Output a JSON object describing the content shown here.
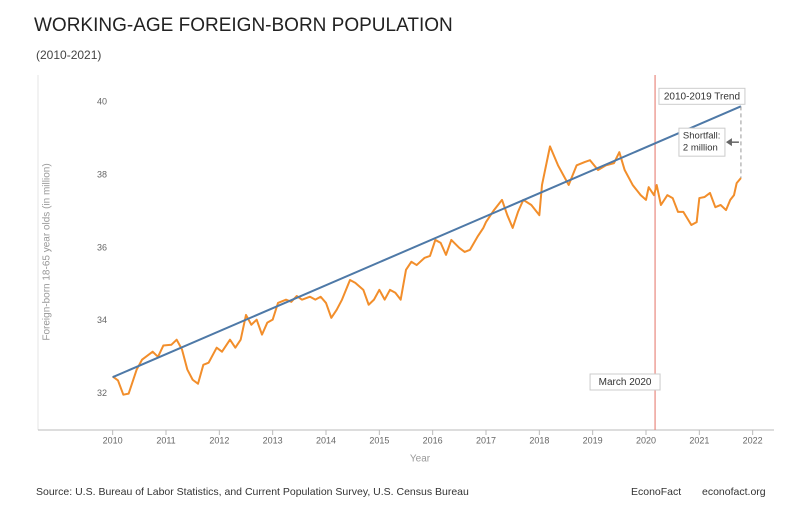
{
  "chart_data": {
    "type": "line",
    "title": "WORKING-AGE FOREIGN-BORN POPULATION",
    "subtitle": "(2010-2021)",
    "x_label": "Year",
    "y_label": "Foreign-born 18-65 year olds (in million)",
    "xlim": [
      2008.6,
      2022.4
    ],
    "ylim": [
      31,
      40.75
    ],
    "xticks": [
      2010,
      2011,
      2012,
      2013,
      2014,
      2015,
      2016,
      2017,
      2018,
      2019,
      2020,
      2021,
      2022
    ],
    "yticks": [
      32,
      34,
      36,
      38,
      40
    ],
    "grid": false,
    "series": [
      {
        "color": "#f28e2b",
        "x": [
          2010.0,
          2010.1,
          2010.2,
          2010.3,
          2010.45,
          2010.55,
          2010.75,
          2010.85,
          2010.95,
          2011.1,
          2011.2,
          2011.3,
          2011.4,
          2011.5,
          2011.6,
          2011.7,
          2011.8,
          2011.95,
          2012.05,
          2012.2,
          2012.3,
          2012.4,
          2012.5,
          2012.6,
          2012.7,
          2012.8,
          2012.9,
          2013.0,
          2013.1,
          2013.25,
          2013.35,
          2013.45,
          2013.55,
          2013.7,
          2013.8,
          2013.9,
          2014.0,
          2014.1,
          2014.2,
          2014.3,
          2014.45,
          2014.55,
          2014.7,
          2014.8,
          2014.9,
          2015.0,
          2015.1,
          2015.2,
          2015.3,
          2015.4,
          2015.5,
          2015.6,
          2015.7,
          2015.85,
          2015.95,
          2016.05,
          2016.15,
          2016.25,
          2016.35,
          2016.5,
          2016.6,
          2016.7,
          2016.85,
          2016.95,
          2017.0,
          2017.15,
          2017.3,
          2017.4,
          2017.5,
          2017.6,
          2017.7,
          2017.85,
          2018.0,
          2018.05,
          2018.2,
          2018.35,
          2018.45,
          2018.55,
          2018.7,
          2018.85,
          2018.95,
          2019.1,
          2019.25,
          2019.4,
          2019.5,
          2019.6,
          2019.75,
          2019.9,
          2020.0,
          2020.05,
          2020.15,
          2020.2,
          2020.28,
          2020.4,
          2020.5,
          2020.6,
          2020.7,
          2020.85,
          2020.95,
          2021.0,
          2021.1,
          2021.2,
          2021.3,
          2021.4,
          2021.5,
          2021.58,
          2021.65,
          2021.7,
          2021.78
        ],
        "values": [
          32.47,
          32.36,
          31.97,
          32.0,
          32.66,
          32.93,
          33.15,
          33.01,
          33.32,
          33.34,
          33.48,
          33.21,
          32.66,
          32.38,
          32.27,
          32.79,
          32.85,
          33.26,
          33.15,
          33.48,
          33.26,
          33.48,
          34.16,
          33.89,
          34.03,
          33.62,
          33.95,
          34.03,
          34.49,
          34.58,
          34.52,
          34.68,
          34.58,
          34.66,
          34.58,
          34.66,
          34.49,
          34.08,
          34.3,
          34.58,
          35.12,
          35.04,
          34.85,
          34.44,
          34.58,
          34.85,
          34.58,
          34.85,
          34.77,
          34.58,
          35.4,
          35.62,
          35.53,
          35.73,
          35.78,
          36.22,
          36.14,
          35.81,
          36.22,
          36.0,
          35.89,
          35.95,
          36.33,
          36.55,
          36.71,
          37.04,
          37.32,
          36.9,
          36.55,
          36.99,
          37.32,
          37.18,
          36.9,
          37.73,
          38.79,
          38.27,
          38.0,
          37.73,
          38.27,
          38.36,
          38.41,
          38.14,
          38.27,
          38.33,
          38.63,
          38.14,
          37.73,
          37.45,
          37.32,
          37.67,
          37.45,
          37.73,
          37.18,
          37.45,
          37.37,
          36.99,
          36.99,
          36.63,
          36.71,
          37.37,
          37.4,
          37.51,
          37.12,
          37.18,
          37.04,
          37.32,
          37.45,
          37.78,
          37.92
        ]
      },
      {
        "name": "2010-2019 Trend",
        "color": "#4e79a7",
        "x": [
          2010.0,
          2021.78
        ],
        "values": [
          32.45,
          39.89
        ]
      }
    ],
    "event_line": {
      "label": "March 2020",
      "x": 2020.17,
      "color": "#e8897f"
    },
    "shortfall_label": [
      "Shortfall:",
      "2 million"
    ],
    "source": "Source: U.S. Bureau of Labor Statistics, and Current Population Survey, U.S. Census Bureau",
    "brand": "EconoFact",
    "url": "econofact.org"
  }
}
